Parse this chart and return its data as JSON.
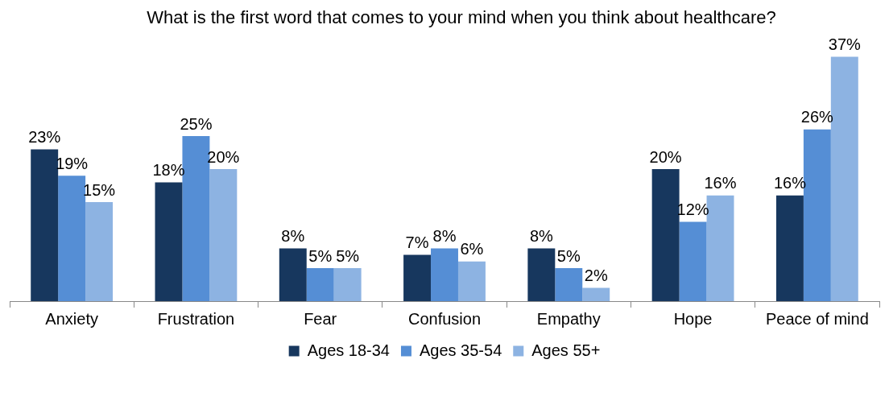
{
  "chart_data": {
    "type": "bar",
    "title": "What is the first word that comes to your mind when you think about healthcare?",
    "categories": [
      "Anxiety",
      "Frustration",
      "Fear",
      "Confusion",
      "Empathy",
      "Hope",
      "Peace of mind"
    ],
    "series": [
      {
        "name": "Ages 18-34",
        "color": "#17375e",
        "values": [
          23,
          18,
          8,
          7,
          8,
          20,
          16
        ],
        "value_labels": [
          "23%",
          "18%",
          "8%",
          "7%",
          "8%",
          "20%",
          "16%"
        ]
      },
      {
        "name": "Ages 35-54",
        "color": "#558ed5",
        "values": [
          19,
          25,
          5,
          8,
          5,
          12,
          26
        ],
        "value_labels": [
          "19%",
          "25%",
          "5%",
          "8%",
          "5%",
          "12%",
          "26%"
        ]
      },
      {
        "name": "Ages 55+",
        "color": "#8db3e2",
        "values": [
          15,
          20,
          5,
          6,
          2,
          16,
          37
        ],
        "value_labels": [
          "15%",
          "20%",
          "5%",
          "6%",
          "2%",
          "16%",
          "37%"
        ]
      }
    ],
    "grid": false,
    "legend": "bottom"
  }
}
